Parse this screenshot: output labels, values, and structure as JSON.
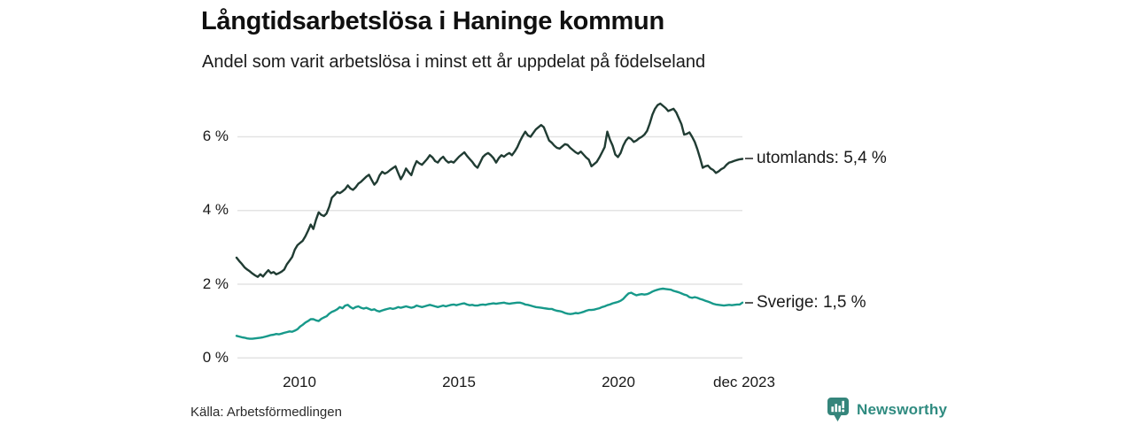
{
  "title": "Långtidsarbetslösa i Haninge kommun",
  "subtitle": "Andel som varit arbetslösa i minst ett år uppdelat på födelseland",
  "source": "Källa: Arbetsförmedlingen",
  "branding": {
    "name": "Newsworthy",
    "icon": "bar-chart-speech-bubble",
    "color": "#2f8b80",
    "icon_color": "#35857b"
  },
  "chart_data": {
    "type": "line",
    "x_start": "2008-01",
    "x_end": "2023-12",
    "x_interval": "monthly",
    "xticks": [
      "2010",
      "2015",
      "2020",
      "dec 2023"
    ],
    "yticks": [
      "6 %",
      "4 %",
      "2 %",
      "0 %"
    ],
    "ytick_values": [
      6,
      4,
      2,
      0
    ],
    "ylim": [
      0,
      7.3
    ],
    "grid": "horizontal",
    "gridline_color": "#e3e3e3",
    "legend_position": "right-edge-annotations",
    "series": [
      {
        "name": "utomlands",
        "label": "utomlands: 5,4 %",
        "last_value": "5,4 %",
        "color": "#203c33",
        "values": [
          2.72,
          2.63,
          2.55,
          2.46,
          2.4,
          2.35,
          2.29,
          2.24,
          2.2,
          2.27,
          2.21,
          2.3,
          2.38,
          2.3,
          2.33,
          2.27,
          2.3,
          2.34,
          2.4,
          2.54,
          2.64,
          2.74,
          2.94,
          3.06,
          3.12,
          3.18,
          3.3,
          3.45,
          3.62,
          3.5,
          3.75,
          3.95,
          3.88,
          3.85,
          3.92,
          4.1,
          4.35,
          4.42,
          4.5,
          4.47,
          4.52,
          4.58,
          4.68,
          4.6,
          4.56,
          4.63,
          4.73,
          4.78,
          4.85,
          4.92,
          4.97,
          4.83,
          4.7,
          4.78,
          4.95,
          5.05,
          5.0,
          5.04,
          5.1,
          5.15,
          5.2,
          5.02,
          4.85,
          4.97,
          5.14,
          5.04,
          4.96,
          5.18,
          5.34,
          5.28,
          5.24,
          5.32,
          5.4,
          5.5,
          5.44,
          5.34,
          5.3,
          5.4,
          5.46,
          5.36,
          5.3,
          5.33,
          5.3,
          5.38,
          5.46,
          5.52,
          5.58,
          5.48,
          5.4,
          5.32,
          5.22,
          5.16,
          5.3,
          5.45,
          5.52,
          5.56,
          5.5,
          5.42,
          5.3,
          5.42,
          5.5,
          5.46,
          5.52,
          5.56,
          5.5,
          5.6,
          5.72,
          5.88,
          6.02,
          6.14,
          6.04,
          6.0,
          6.1,
          6.2,
          6.26,
          6.32,
          6.26,
          6.08,
          5.9,
          5.84,
          5.76,
          5.7,
          5.68,
          5.74,
          5.8,
          5.78,
          5.7,
          5.64,
          5.58,
          5.54,
          5.6,
          5.52,
          5.44,
          5.38,
          5.2,
          5.26,
          5.32,
          5.44,
          5.58,
          5.72,
          6.14,
          5.92,
          5.76,
          5.52,
          5.45,
          5.56,
          5.76,
          5.9,
          5.98,
          5.94,
          5.86,
          5.9,
          5.96,
          6.0,
          6.06,
          6.16,
          6.36,
          6.6,
          6.76,
          6.86,
          6.9,
          6.84,
          6.78,
          6.7,
          6.73,
          6.76,
          6.66,
          6.5,
          6.34,
          6.06,
          6.08,
          6.12,
          6.0,
          5.86,
          5.66,
          5.42,
          5.16,
          5.2,
          5.22,
          5.14,
          5.1,
          5.02,
          5.06,
          5.12,
          5.16,
          5.24,
          5.3,
          5.32,
          5.35,
          5.37,
          5.39,
          5.4
        ]
      },
      {
        "name": "Sverige",
        "label": "Sverige: 1,5 %",
        "last_value": "1,5 %",
        "color": "#17998a",
        "values": [
          0.6,
          0.58,
          0.56,
          0.55,
          0.53,
          0.52,
          0.52,
          0.53,
          0.54,
          0.55,
          0.56,
          0.58,
          0.6,
          0.62,
          0.63,
          0.65,
          0.64,
          0.66,
          0.68,
          0.7,
          0.72,
          0.71,
          0.74,
          0.78,
          0.85,
          0.9,
          0.96,
          1.0,
          1.05,
          1.05,
          1.02,
          1.0,
          1.06,
          1.1,
          1.13,
          1.2,
          1.25,
          1.28,
          1.32,
          1.38,
          1.35,
          1.42,
          1.44,
          1.38,
          1.34,
          1.38,
          1.4,
          1.36,
          1.34,
          1.36,
          1.33,
          1.3,
          1.32,
          1.28,
          1.26,
          1.29,
          1.31,
          1.33,
          1.35,
          1.33,
          1.35,
          1.38,
          1.36,
          1.38,
          1.4,
          1.38,
          1.36,
          1.38,
          1.42,
          1.4,
          1.38,
          1.4,
          1.42,
          1.44,
          1.42,
          1.4,
          1.38,
          1.4,
          1.42,
          1.4,
          1.42,
          1.44,
          1.45,
          1.43,
          1.45,
          1.47,
          1.48,
          1.45,
          1.43,
          1.44,
          1.42,
          1.42,
          1.44,
          1.45,
          1.44,
          1.46,
          1.47,
          1.48,
          1.47,
          1.48,
          1.49,
          1.5,
          1.48,
          1.47,
          1.48,
          1.49,
          1.5,
          1.5,
          1.48,
          1.45,
          1.44,
          1.42,
          1.4,
          1.38,
          1.37,
          1.36,
          1.35,
          1.34,
          1.33,
          1.33,
          1.3,
          1.28,
          1.27,
          1.25,
          1.22,
          1.2,
          1.19,
          1.2,
          1.22,
          1.21,
          1.23,
          1.25,
          1.28,
          1.3,
          1.3,
          1.31,
          1.33,
          1.35,
          1.38,
          1.4,
          1.43,
          1.45,
          1.48,
          1.5,
          1.52,
          1.55,
          1.6,
          1.68,
          1.75,
          1.77,
          1.73,
          1.7,
          1.72,
          1.73,
          1.72,
          1.73,
          1.76,
          1.8,
          1.83,
          1.85,
          1.87,
          1.88,
          1.87,
          1.86,
          1.85,
          1.82,
          1.8,
          1.78,
          1.75,
          1.72,
          1.7,
          1.65,
          1.63,
          1.65,
          1.63,
          1.6,
          1.58,
          1.55,
          1.53,
          1.5,
          1.47,
          1.45,
          1.44,
          1.43,
          1.42,
          1.43,
          1.44,
          1.43,
          1.44,
          1.45,
          1.45,
          1.5
        ]
      }
    ]
  }
}
